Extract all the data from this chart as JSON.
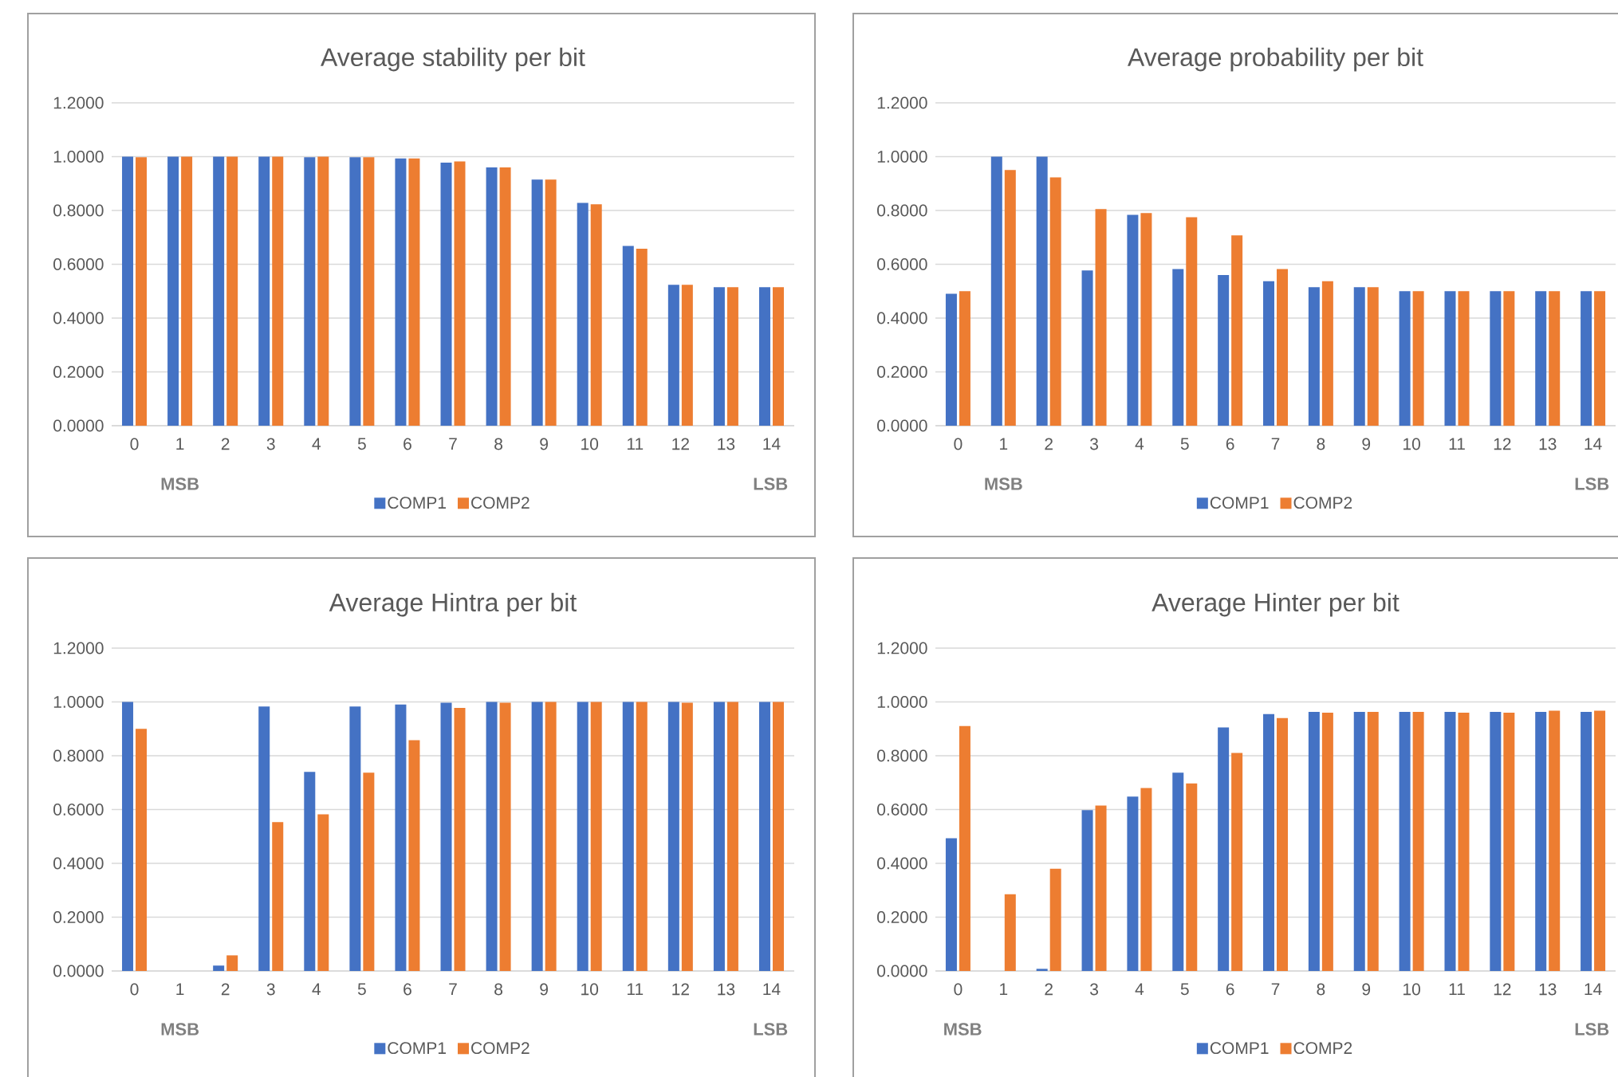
{
  "chart_data": [
    {
      "type": "bar",
      "title": "Average stability per bit",
      "categories": [
        "0",
        "1",
        "2",
        "3",
        "4",
        "5",
        "6",
        "7",
        "8",
        "9",
        "10",
        "11",
        "12",
        "13",
        "14"
      ],
      "series": [
        {
          "name": "COMP1",
          "color": "#4472c4",
          "values": [
            1.0,
            1.0,
            1.0,
            1.0,
            0.998,
            0.998,
            0.993,
            0.978,
            0.96,
            0.915,
            0.828,
            0.668,
            0.524,
            0.515,
            0.515
          ]
        },
        {
          "name": "COMP2",
          "color": "#ed7d31",
          "values": [
            0.998,
            1.0,
            1.0,
            1.0,
            1.0,
            0.998,
            0.993,
            0.982,
            0.96,
            0.915,
            0.823,
            0.658,
            0.524,
            0.515,
            0.515
          ]
        }
      ],
      "ylim": [
        0,
        1.2
      ],
      "yticks": [
        {
          "value": 0,
          "label": "0.0000"
        },
        {
          "value": 0.2,
          "label": "0.2000"
        },
        {
          "value": 0.4,
          "label": "0.4000"
        },
        {
          "value": 0.6,
          "label": "0.6000"
        },
        {
          "value": 0.8,
          "label": "0.8000"
        },
        {
          "value": 1.0,
          "label": "1.0000"
        },
        {
          "value": 1.2,
          "label": "1.2000"
        }
      ],
      "annotations": [
        "MSB",
        "LSB"
      ],
      "grid": "y",
      "legend": "bottom"
    },
    {
      "type": "bar",
      "title": "Average probability per bit",
      "categories": [
        "0",
        "1",
        "2",
        "3",
        "4",
        "5",
        "6",
        "7",
        "8",
        "9",
        "10",
        "11",
        "12",
        "13",
        "14"
      ],
      "series": [
        {
          "name": "COMP1",
          "color": "#4472c4",
          "values": [
            0.49,
            1.0,
            1.0,
            0.577,
            0.784,
            0.582,
            0.56,
            0.537,
            0.515,
            0.515,
            0.5,
            0.5,
            0.5,
            0.5,
            0.5
          ]
        },
        {
          "name": "COMP2",
          "color": "#ed7d31",
          "values": [
            0.5,
            0.95,
            0.923,
            0.805,
            0.79,
            0.775,
            0.707,
            0.582,
            0.537,
            0.515,
            0.5,
            0.5,
            0.5,
            0.5,
            0.5
          ]
        }
      ],
      "ylim": [
        0,
        1.2
      ],
      "yticks": [
        {
          "value": 0,
          "label": "0.0000"
        },
        {
          "value": 0.2,
          "label": "0.2000"
        },
        {
          "value": 0.4,
          "label": "0.4000"
        },
        {
          "value": 0.6,
          "label": "0.6000"
        },
        {
          "value": 0.8,
          "label": "0.8000"
        },
        {
          "value": 1.0,
          "label": "1.0000"
        },
        {
          "value": 1.2,
          "label": "1.2000"
        }
      ],
      "annotations": [
        "MSB",
        "LSB"
      ],
      "grid": "y",
      "legend": "bottom"
    },
    {
      "type": "bar",
      "title": "Average Hintra per bit",
      "categories": [
        "0",
        "1",
        "2",
        "3",
        "4",
        "5",
        "6",
        "7",
        "8",
        "9",
        "10",
        "11",
        "12",
        "13",
        "14"
      ],
      "series": [
        {
          "name": "COMP1",
          "color": "#4472c4",
          "values": [
            1.0,
            0,
            0.02,
            0.983,
            0.74,
            0.983,
            0.99,
            0.997,
            1.0,
            1.0,
            1.0,
            1.0,
            1.0,
            1.0,
            1.0
          ]
        },
        {
          "name": "COMP2",
          "color": "#ed7d31",
          "values": [
            0.9,
            0,
            0.058,
            0.553,
            0.582,
            0.737,
            0.858,
            0.978,
            0.997,
            1.0,
            1.0,
            1.0,
            0.997,
            1.0,
            1.0
          ]
        }
      ],
      "ylim": [
        0,
        1.2
      ],
      "yticks": [
        {
          "value": 0,
          "label": "0.0000"
        },
        {
          "value": 0.2,
          "label": "0.2000"
        },
        {
          "value": 0.4,
          "label": "0.4000"
        },
        {
          "value": 0.6,
          "label": "0.6000"
        },
        {
          "value": 0.8,
          "label": "0.8000"
        },
        {
          "value": 1.0,
          "label": "1.0000"
        },
        {
          "value": 1.2,
          "label": "1.2000"
        }
      ],
      "annotations": [
        "MSB",
        "LSB"
      ],
      "grid": "y",
      "legend": "bottom"
    },
    {
      "type": "bar",
      "title": "Average Hinter per bit",
      "categories": [
        "0",
        "1",
        "2",
        "3",
        "4",
        "5",
        "6",
        "7",
        "8",
        "9",
        "10",
        "11",
        "12",
        "13",
        "14"
      ],
      "series": [
        {
          "name": "COMP1",
          "color": "#4472c4",
          "values": [
            0.493,
            0,
            0.008,
            0.598,
            0.648,
            0.737,
            0.905,
            0.955,
            0.963,
            0.963,
            0.963,
            0.963,
            0.963,
            0.963,
            0.963
          ]
        },
        {
          "name": "COMP2",
          "color": "#ed7d31",
          "values": [
            0.91,
            0.285,
            0.38,
            0.615,
            0.68,
            0.697,
            0.81,
            0.94,
            0.96,
            0.963,
            0.963,
            0.96,
            0.96,
            0.967,
            0.967
          ]
        }
      ],
      "ylim": [
        0,
        1.2
      ],
      "yticks": [
        {
          "value": 0,
          "label": "0.0000"
        },
        {
          "value": 0.2,
          "label": "0.2000"
        },
        {
          "value": 0.4,
          "label": "0.4000"
        },
        {
          "value": 0.6,
          "label": "0.6000"
        },
        {
          "value": 0.8,
          "label": "0.8000"
        },
        {
          "value": 1.0,
          "label": "1.0000"
        },
        {
          "value": 1.2,
          "label": "1.2000"
        }
      ],
      "annotations": [
        "MSB",
        "LSB"
      ],
      "grid": "y",
      "legend": "bottom"
    }
  ]
}
